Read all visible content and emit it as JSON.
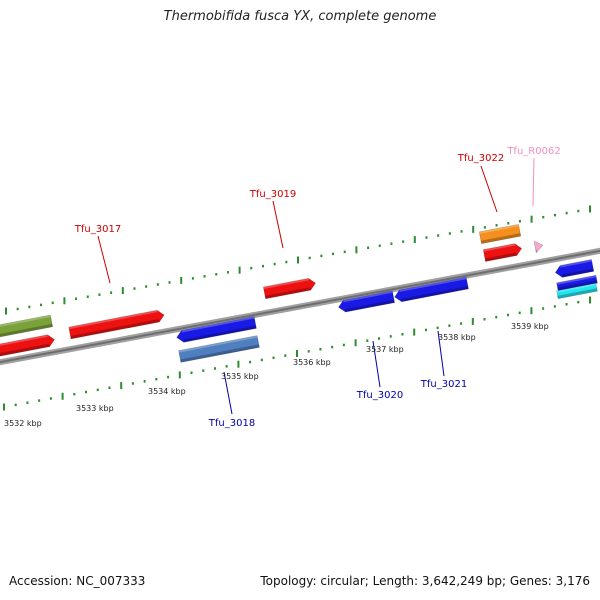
{
  "title": "Thermobifida fusca YX, complete genome",
  "footer": {
    "accession": "Accession: NC_007333",
    "summary": "Topology: circular; Length: 3,642,249 bp; Genes: 3,176"
  },
  "colors": {
    "backbone": "#8c8c8c",
    "ticks": "#2e8b2e",
    "forward_label": "#cc0000",
    "reverse_label": "#0000aa",
    "rna_label": "#f090c0"
  },
  "ruler": {
    "labels": [
      "3532 kbp",
      "3533 kbp",
      "3534 kbp",
      "3535 kbp",
      "3536 kbp",
      "3537 kbp",
      "3538 kbp",
      "3539 kbp"
    ]
  },
  "features": [
    {
      "id": "f1",
      "strand": "forward",
      "kind": "olive",
      "color": "#7ba23a",
      "name": ""
    },
    {
      "id": "f2",
      "strand": "forward",
      "kind": "cds",
      "color": "#ee1111",
      "name": ""
    },
    {
      "id": "f3",
      "strand": "forward",
      "kind": "cds",
      "color": "#ee1111",
      "name": "Tfu_3017"
    },
    {
      "id": "f4",
      "strand": "reverse",
      "kind": "cds",
      "color": "#1a1ae6",
      "name": ""
    },
    {
      "id": "f5",
      "strand": "reverse",
      "kind": "gene",
      "color": "#4f7fbf",
      "name": "Tfu_3018"
    },
    {
      "id": "f6",
      "strand": "forward",
      "kind": "cds",
      "color": "#ee1111",
      "name": "Tfu_3019"
    },
    {
      "id": "f7",
      "strand": "reverse",
      "kind": "cds",
      "color": "#1a1ae6",
      "name": "Tfu_3020"
    },
    {
      "id": "f8",
      "strand": "reverse",
      "kind": "cds",
      "color": "#1a1ae6",
      "name": "Tfu_3021"
    },
    {
      "id": "f9",
      "strand": "forward",
      "kind": "gene",
      "color": "#f5901e",
      "name": ""
    },
    {
      "id": "f10",
      "strand": "forward",
      "kind": "cds",
      "color": "#ee1111",
      "name": "Tfu_3022"
    },
    {
      "id": "f11",
      "strand": "forward",
      "kind": "rna",
      "color": "#f7a8d0",
      "name": "Tfu_R0062"
    },
    {
      "id": "f12",
      "strand": "reverse",
      "kind": "cds",
      "color": "#1a1ae6",
      "name": ""
    },
    {
      "id": "f13",
      "strand": "reverse",
      "kind": "cds",
      "color": "#1a1ae6",
      "name": ""
    },
    {
      "id": "f14",
      "strand": "reverse",
      "kind": "other",
      "color": "#22e5f0",
      "name": ""
    }
  ]
}
